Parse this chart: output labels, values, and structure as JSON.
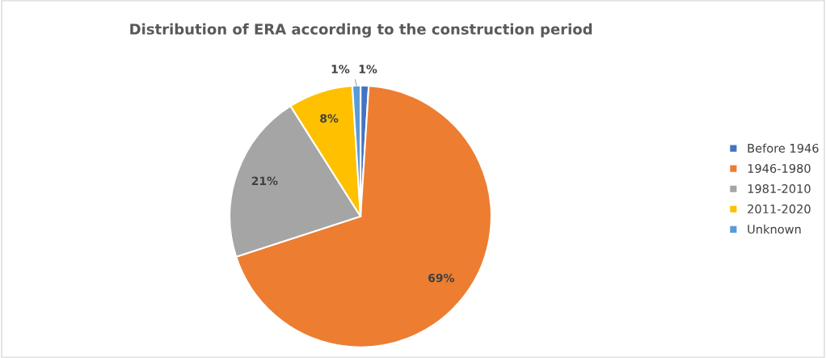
{
  "chart_data": {
    "type": "pie",
    "title": "Distribution of ERA according to the construction period",
    "categories": [
      "Before 1946",
      "1946-1980",
      "1981-2010",
      "2011-2020",
      "Unknown"
    ],
    "values": [
      1,
      69,
      21,
      8,
      1
    ],
    "colors": [
      "#4472c4",
      "#ed7d31",
      "#a5a5a5",
      "#ffc000",
      "#5b9bd5"
    ],
    "value_labels": [
      "1%",
      "69%",
      "21%",
      "8%",
      "1%"
    ],
    "legend": "right"
  }
}
